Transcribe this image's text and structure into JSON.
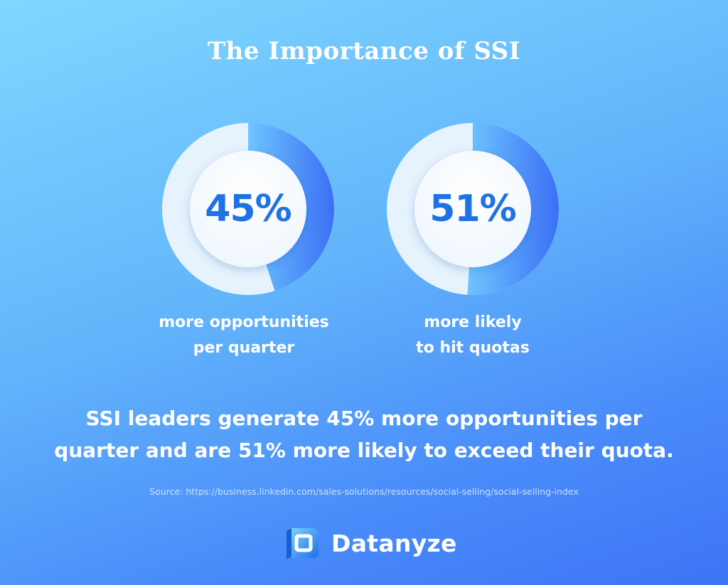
{
  "header": {
    "title": "The Importance of SSI"
  },
  "chart_data": [
    {
      "type": "pie",
      "center_label": "45%",
      "values": [
        45,
        55
      ],
      "caption": [
        "more opportunities",
        "per quarter"
      ],
      "colors": {
        "filled_start": "#6ec6ff",
        "filled_end": "#3b6ff5",
        "remainder": "#e6f3fd",
        "label": "#1f72e4"
      }
    },
    {
      "type": "pie",
      "center_label": "51%",
      "values": [
        51,
        49
      ],
      "caption": [
        "more likely",
        "to hit quotas"
      ],
      "colors": {
        "filled_start": "#6ec6ff",
        "filled_end": "#3b6ff5",
        "remainder": "#e6f3fd",
        "label": "#1f72e4"
      }
    }
  ],
  "summary": {
    "line1": "SSI leaders generate 45% more opportunities per",
    "line2": "quarter and are 51% more likely to exceed their quota."
  },
  "source": "Source: https://business.linkedin.com/sales-solutions/resources/social-selling/social-selling-index",
  "brand": {
    "name": "Datanyze",
    "icon": "datanyze-logo-icon"
  }
}
